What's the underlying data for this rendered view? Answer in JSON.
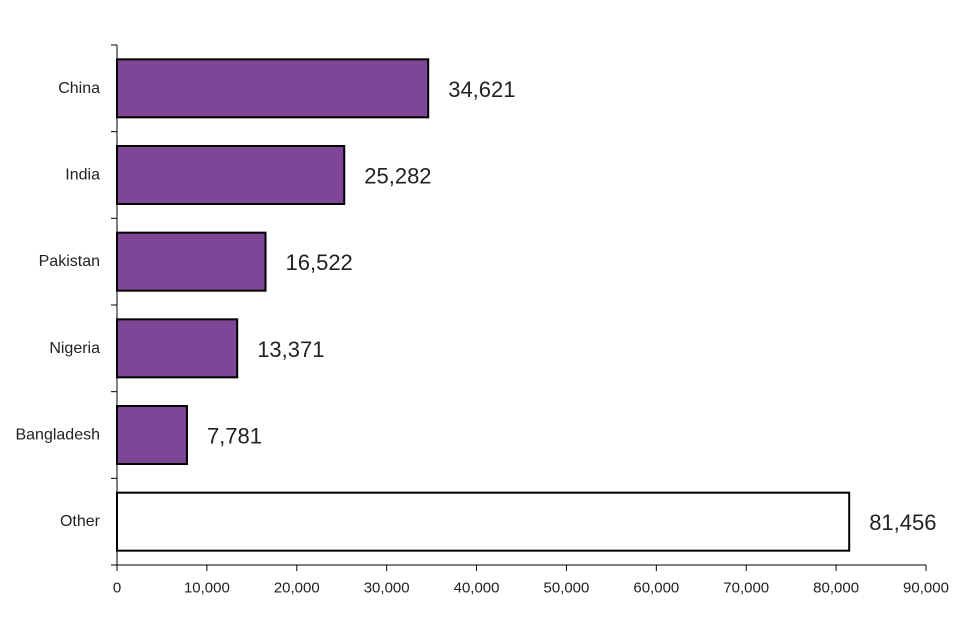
{
  "chart_data": {
    "type": "bar",
    "orientation": "horizontal",
    "categories": [
      "China",
      "India",
      "Pakistan",
      "Nigeria",
      "Bangladesh",
      "Other"
    ],
    "values": [
      34621,
      25282,
      16522,
      13371,
      7781,
      81456
    ],
    "data_labels": [
      "34,621",
      "25,282",
      "16,522",
      "13,371",
      "7,781",
      "81,456"
    ],
    "bar_colors": [
      "#7f4597",
      "#7f4597",
      "#7f4597",
      "#7f4597",
      "#7f4597",
      "#ffffff"
    ],
    "bar_outline_color": "#000000",
    "xlim": [
      0,
      90000
    ],
    "xticks": [
      0,
      10000,
      20000,
      30000,
      40000,
      50000,
      60000,
      70000,
      80000,
      90000
    ],
    "xtick_labels": [
      "0",
      "10,000",
      "20,000",
      "30,000",
      "40,000",
      "50,000",
      "60,000",
      "70,000",
      "80,000",
      "90,000"
    ],
    "grid": false,
    "legend": "none"
  }
}
